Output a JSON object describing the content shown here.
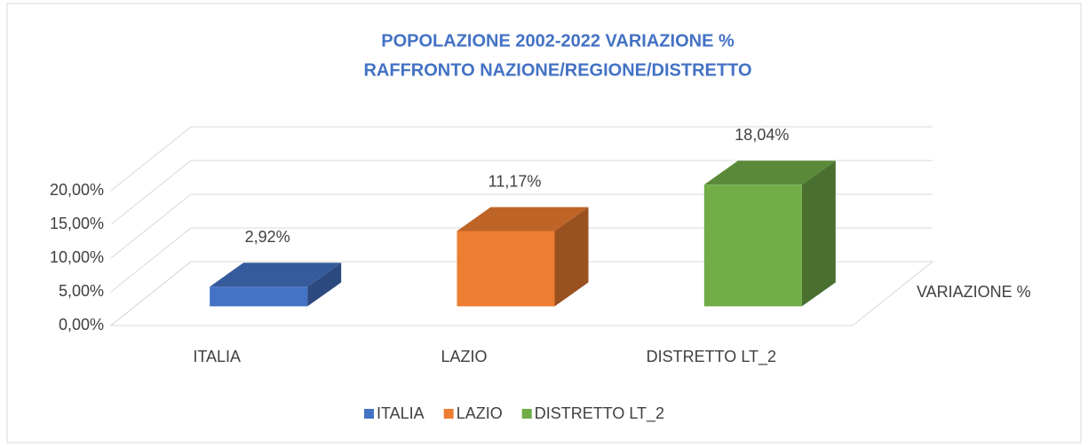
{
  "chart_data": {
    "type": "bar3d",
    "title": [
      "POPOLAZIONE 2002-2022 VARIAZIONE %",
      "RAFFRONTO NAZIONE/REGIONE/DISTRETTO"
    ],
    "categories": [
      "ITALIA",
      "LAZIO",
      "DISTRETTO LT_2"
    ],
    "series": [
      {
        "name": "VARIAZIONE %",
        "colors": [
          "#4472c4",
          "#ed7d31",
          "#70ad47"
        ],
        "values": [
          2.92,
          11.17,
          18.04
        ],
        "value_labels": [
          "2,92%",
          "11,17%",
          "18,04%"
        ]
      }
    ],
    "ylim": [
      0,
      20
    ],
    "yticks": [
      {
        "value": 0,
        "label": "0,00%"
      },
      {
        "value": 5,
        "label": "5,00%"
      },
      {
        "value": 10,
        "label": "10,00%"
      },
      {
        "value": 15,
        "label": "15,00%"
      },
      {
        "value": 20,
        "label": "20,00%"
      }
    ],
    "grid": true,
    "legend": "bottom"
  }
}
